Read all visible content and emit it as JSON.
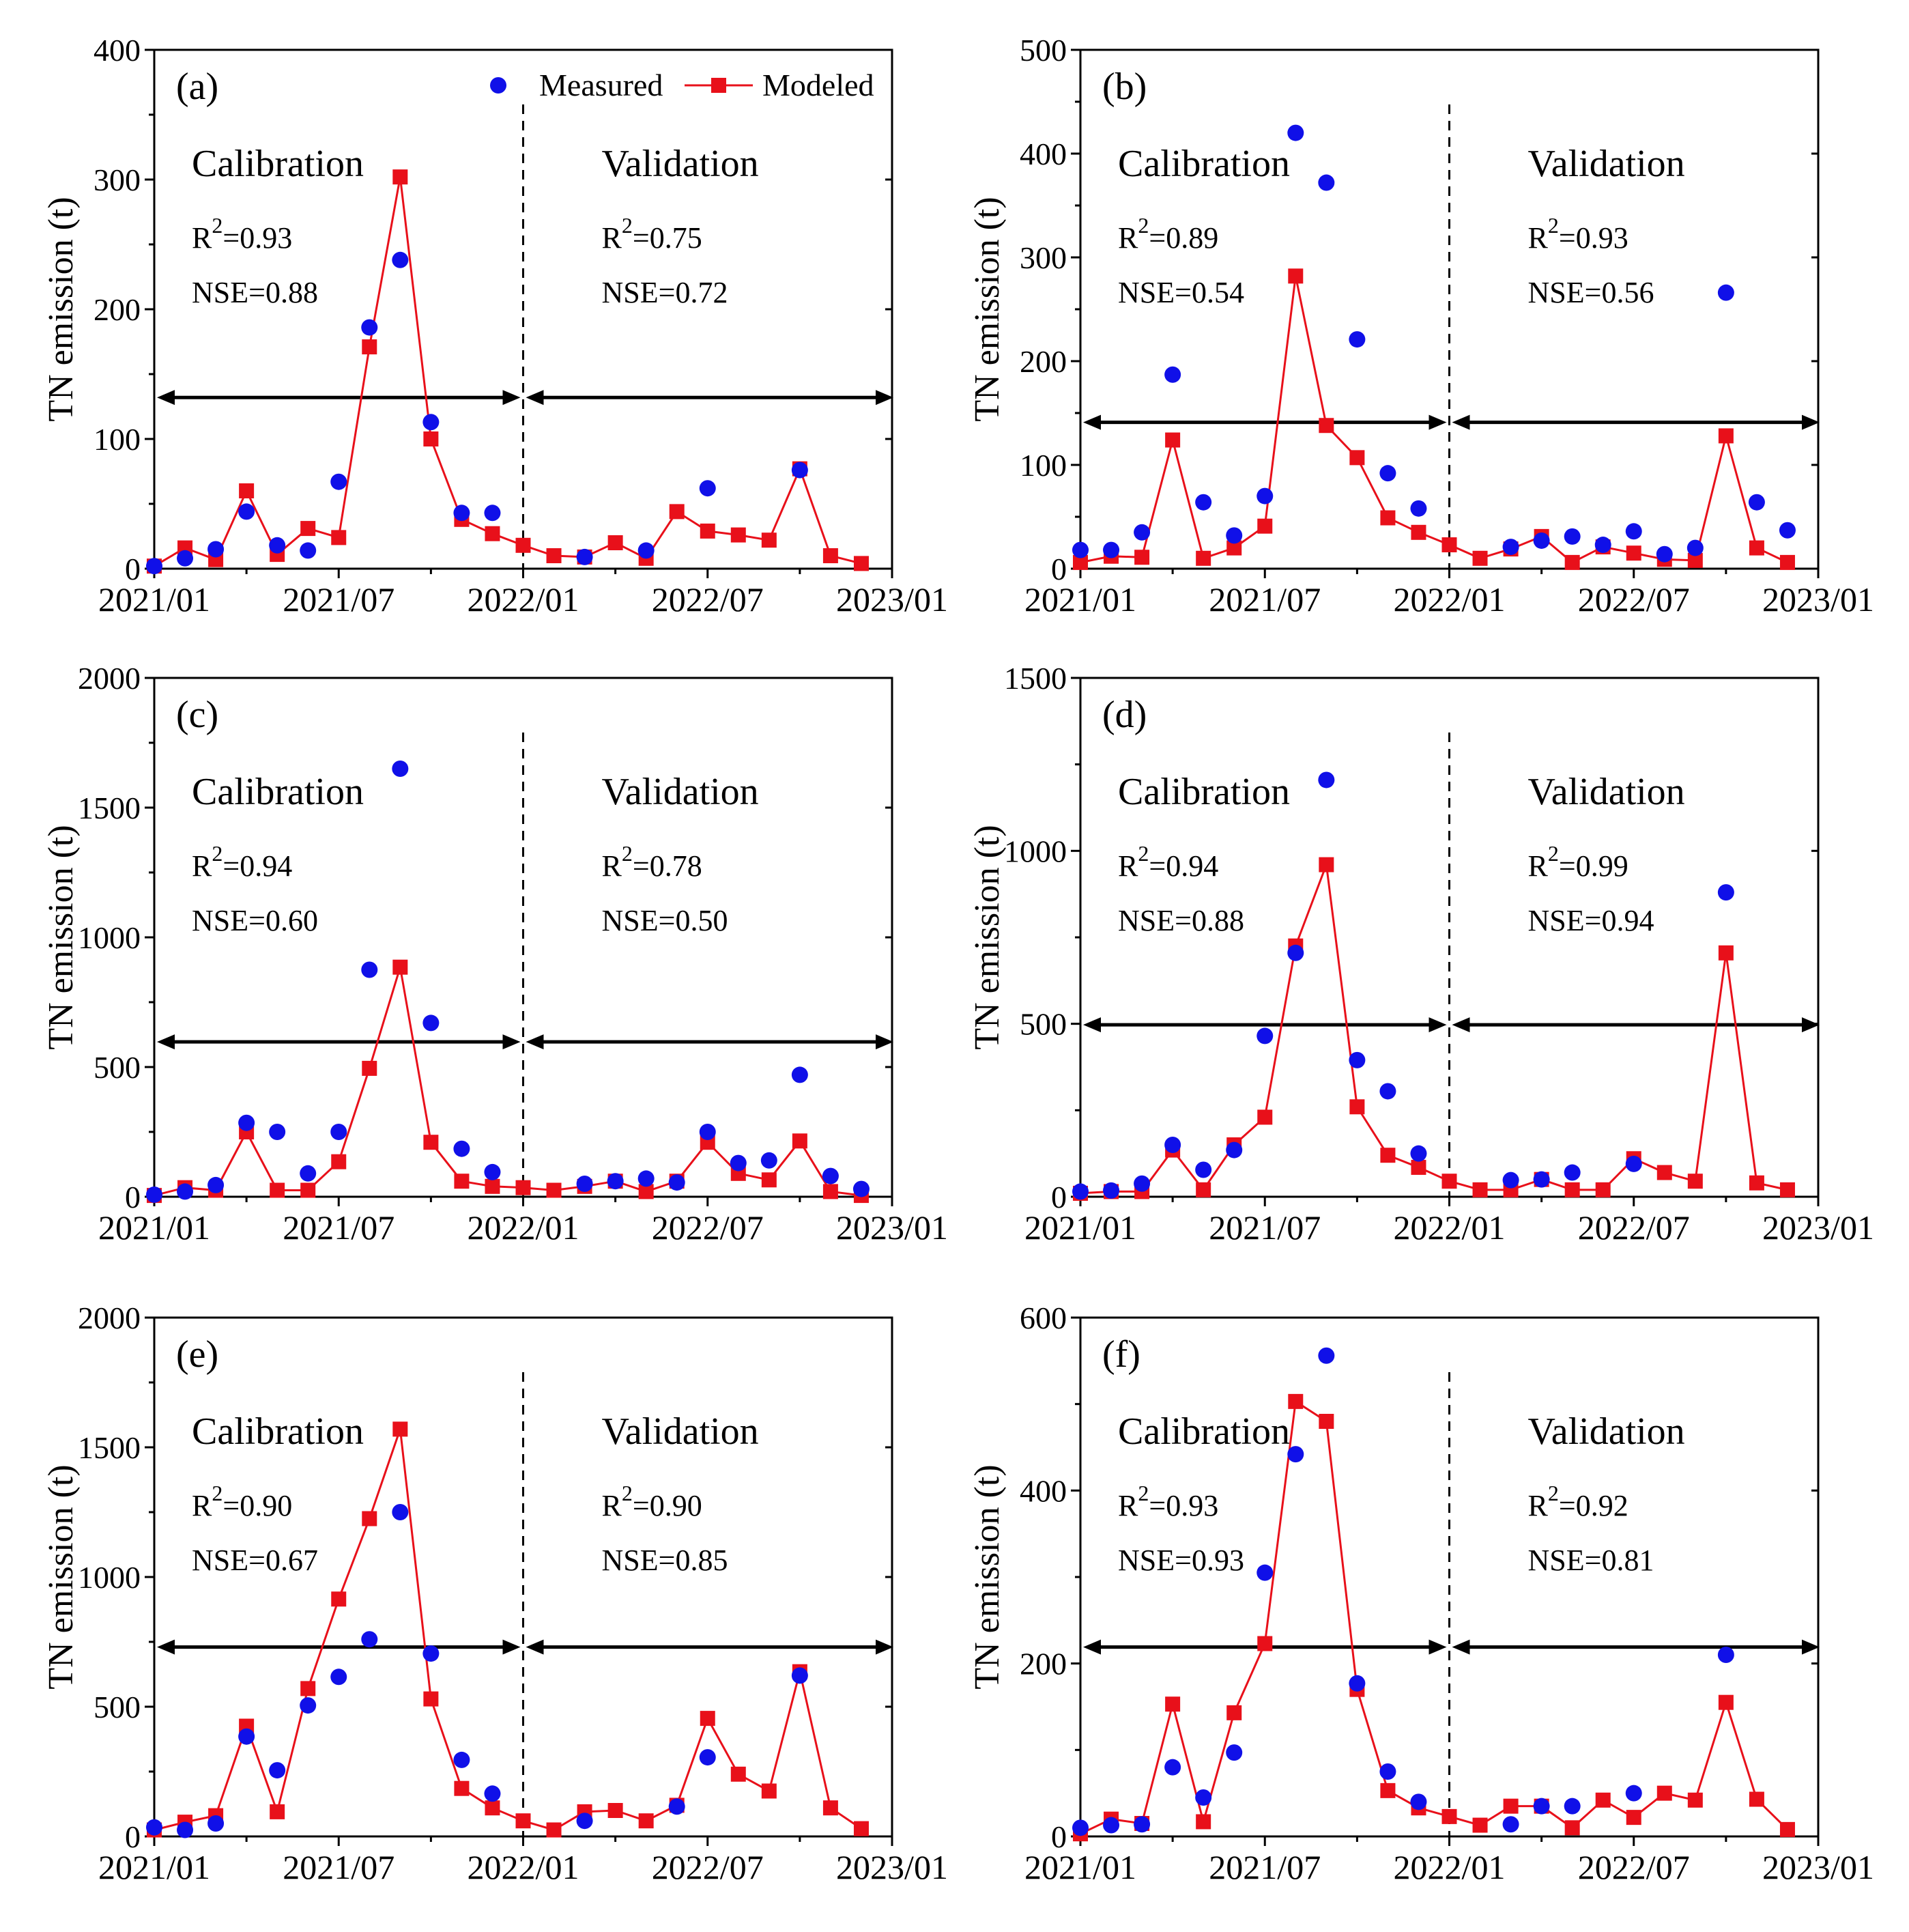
{
  "colors": {
    "measured": "#1010e8",
    "modeled": "#e8101a",
    "axis": "#000000"
  },
  "legend": {
    "measured": "Measured",
    "modeled": "Modeled"
  },
  "x_tick_labels": [
    "2021/01",
    "2021/07",
    "2022/01",
    "2022/07",
    "2023/01"
  ],
  "chart_data": [
    {
      "type": "line",
      "panel_label": "(a)",
      "ylabel": "TN emission (t)",
      "ylim": [
        0,
        400
      ],
      "yticks": [
        0,
        100,
        200,
        300,
        400
      ],
      "arrow_y": 132,
      "calibration": {
        "label": "Calibration",
        "r2": "0.93",
        "nse": "NSE=0.88"
      },
      "validation": {
        "label": "Validation",
        "r2": "0.75",
        "nse": "NSE=0.72"
      },
      "measured": [
        [
          0,
          2
        ],
        [
          1,
          8
        ],
        [
          2,
          15
        ],
        [
          3,
          44
        ],
        [
          4,
          18
        ],
        [
          5,
          14
        ],
        [
          6,
          67
        ],
        [
          7,
          186
        ],
        [
          8,
          238
        ],
        [
          9,
          113
        ],
        [
          10,
          43
        ],
        [
          11,
          43
        ],
        [
          14,
          9
        ],
        [
          16,
          14
        ],
        [
          18,
          62
        ],
        [
          21,
          76
        ]
      ],
      "modeled": [
        [
          0,
          2
        ],
        [
          1,
          16
        ],
        [
          2,
          7
        ],
        [
          3,
          60
        ],
        [
          4,
          11
        ],
        [
          5,
          31
        ],
        [
          6,
          24
        ],
        [
          7,
          171
        ],
        [
          8,
          302
        ],
        [
          9,
          100
        ],
        [
          10,
          38
        ],
        [
          11,
          27
        ],
        [
          12,
          18
        ],
        [
          13,
          10
        ],
        [
          14,
          9
        ],
        [
          15,
          20
        ],
        [
          16,
          8
        ],
        [
          17,
          44
        ],
        [
          18,
          29
        ],
        [
          19,
          26
        ],
        [
          20,
          22
        ],
        [
          21,
          77
        ],
        [
          22,
          10
        ],
        [
          23,
          4
        ]
      ]
    },
    {
      "type": "line",
      "panel_label": "(b)",
      "ylabel": "TN emission (t)",
      "ylim": [
        0,
        500
      ],
      "yticks": [
        0,
        100,
        200,
        300,
        400,
        500
      ],
      "arrow_y": 141,
      "calibration": {
        "label": "Calibration",
        "r2": "0.89",
        "nse": "NSE=0.54"
      },
      "validation": {
        "label": "Validation",
        "r2": "0.93",
        "nse": "NSE=0.56"
      },
      "measured": [
        [
          0,
          18
        ],
        [
          1,
          18
        ],
        [
          2,
          35
        ],
        [
          3,
          187
        ],
        [
          4,
          64
        ],
        [
          5,
          32
        ],
        [
          6,
          70
        ],
        [
          7,
          420
        ],
        [
          8,
          372
        ],
        [
          9,
          221
        ],
        [
          10,
          92
        ],
        [
          11,
          58
        ],
        [
          14,
          21
        ],
        [
          15,
          27
        ],
        [
          16,
          31
        ],
        [
          17,
          23
        ],
        [
          18,
          36
        ],
        [
          19,
          14
        ],
        [
          20,
          20
        ],
        [
          21,
          266
        ],
        [
          22,
          64
        ],
        [
          23,
          37
        ]
      ],
      "modeled": [
        [
          0,
          6
        ],
        [
          1,
          12
        ],
        [
          2,
          11
        ],
        [
          3,
          124
        ],
        [
          4,
          10
        ],
        [
          5,
          20
        ],
        [
          6,
          41
        ],
        [
          7,
          282
        ],
        [
          8,
          138
        ],
        [
          9,
          107
        ],
        [
          10,
          49
        ],
        [
          11,
          35
        ],
        [
          12,
          23
        ],
        [
          13,
          10
        ],
        [
          14,
          19
        ],
        [
          15,
          31
        ],
        [
          16,
          6
        ],
        [
          17,
          21
        ],
        [
          18,
          15
        ],
        [
          19,
          9
        ],
        [
          20,
          8
        ],
        [
          21,
          128
        ],
        [
          22,
          20
        ],
        [
          23,
          6
        ]
      ]
    },
    {
      "type": "line",
      "panel_label": "(c)",
      "ylabel": "TN emission (t)",
      "ylim": [
        0,
        2000
      ],
      "yticks": [
        0,
        500,
        1000,
        1500,
        2000
      ],
      "arrow_y": 597,
      "calibration": {
        "label": "Calibration",
        "r2": "0.94",
        "nse": "NSE=0.60"
      },
      "validation": {
        "label": "Validation",
        "r2": "0.78",
        "nse": "NSE=0.50"
      },
      "measured": [
        [
          0,
          8
        ],
        [
          1,
          20
        ],
        [
          2,
          45
        ],
        [
          3,
          285
        ],
        [
          4,
          250
        ],
        [
          5,
          90
        ],
        [
          6,
          250
        ],
        [
          7,
          875
        ],
        [
          8,
          1650
        ],
        [
          9,
          670
        ],
        [
          10,
          185
        ],
        [
          11,
          95
        ],
        [
          14,
          50
        ],
        [
          15,
          60
        ],
        [
          16,
          70
        ],
        [
          17,
          55
        ],
        [
          18,
          250
        ],
        [
          19,
          130
        ],
        [
          20,
          140
        ],
        [
          21,
          470
        ],
        [
          22,
          80
        ],
        [
          23,
          30
        ]
      ],
      "modeled": [
        [
          0,
          5
        ],
        [
          1,
          35
        ],
        [
          2,
          25
        ],
        [
          3,
          250
        ],
        [
          4,
          25
        ],
        [
          5,
          25
        ],
        [
          6,
          135
        ],
        [
          7,
          495
        ],
        [
          8,
          885
        ],
        [
          9,
          210
        ],
        [
          10,
          60
        ],
        [
          11,
          40
        ],
        [
          12,
          35
        ],
        [
          13,
          25
        ],
        [
          14,
          40
        ],
        [
          15,
          60
        ],
        [
          16,
          20
        ],
        [
          17,
          60
        ],
        [
          18,
          210
        ],
        [
          19,
          90
        ],
        [
          20,
          65
        ],
        [
          21,
          215
        ],
        [
          22,
          20
        ],
        [
          23,
          5
        ]
      ]
    },
    {
      "type": "line",
      "panel_label": "(d)",
      "ylabel": "TN emission (t)",
      "ylim": [
        0,
        1500
      ],
      "yticks": [
        0,
        500,
        1000,
        1500
      ],
      "arrow_y": 497,
      "calibration": {
        "label": "Calibration",
        "r2": "0.94",
        "nse": "NSE=0.88"
      },
      "validation": {
        "label": "Validation",
        "r2": "0.99",
        "nse": "NSE=0.94"
      },
      "measured": [
        [
          0,
          15
        ],
        [
          1,
          18
        ],
        [
          2,
          38
        ],
        [
          3,
          150
        ],
        [
          4,
          78
        ],
        [
          5,
          135
        ],
        [
          6,
          465
        ],
        [
          7,
          705
        ],
        [
          8,
          1205
        ],
        [
          9,
          395
        ],
        [
          10,
          305
        ],
        [
          11,
          125
        ],
        [
          14,
          48
        ],
        [
          15,
          50
        ],
        [
          16,
          70
        ],
        [
          18,
          95
        ],
        [
          21,
          880
        ]
      ],
      "modeled": [
        [
          0,
          10
        ],
        [
          1,
          15
        ],
        [
          2,
          15
        ],
        [
          3,
          135
        ],
        [
          4,
          20
        ],
        [
          5,
          150
        ],
        [
          6,
          230
        ],
        [
          7,
          725
        ],
        [
          8,
          960
        ],
        [
          9,
          260
        ],
        [
          10,
          120
        ],
        [
          11,
          85
        ],
        [
          12,
          45
        ],
        [
          13,
          20
        ],
        [
          14,
          20
        ],
        [
          15,
          50
        ],
        [
          16,
          20
        ],
        [
          17,
          20
        ],
        [
          18,
          110
        ],
        [
          19,
          70
        ],
        [
          20,
          45
        ],
        [
          21,
          705
        ],
        [
          22,
          40
        ],
        [
          23,
          20
        ]
      ]
    },
    {
      "type": "line",
      "panel_label": "(e)",
      "ylabel": "TN emission (t)",
      "ylim": [
        0,
        2000
      ],
      "yticks": [
        0,
        500,
        1000,
        1500,
        2000
      ],
      "arrow_y": 730,
      "calibration": {
        "label": "Calibration",
        "r2": "0.90",
        "nse": "NSE=0.67"
      },
      "validation": {
        "label": "Validation",
        "r2": "0.90",
        "nse": "NSE=0.85"
      },
      "measured": [
        [
          0,
          35
        ],
        [
          1,
          25
        ],
        [
          2,
          50
        ],
        [
          3,
          385
        ],
        [
          4,
          255
        ],
        [
          5,
          505
        ],
        [
          6,
          615
        ],
        [
          7,
          760
        ],
        [
          8,
          1250
        ],
        [
          9,
          705
        ],
        [
          10,
          295
        ],
        [
          11,
          165
        ],
        [
          14,
          60
        ],
        [
          17,
          115
        ],
        [
          18,
          305
        ],
        [
          21,
          620
        ]
      ],
      "modeled": [
        [
          0,
          25
        ],
        [
          1,
          55
        ],
        [
          2,
          80
        ],
        [
          3,
          425
        ],
        [
          4,
          95
        ],
        [
          5,
          570
        ],
        [
          6,
          915
        ],
        [
          7,
          1225
        ],
        [
          8,
          1570
        ],
        [
          9,
          530
        ],
        [
          10,
          185
        ],
        [
          11,
          110
        ],
        [
          12,
          60
        ],
        [
          13,
          25
        ],
        [
          14,
          95
        ],
        [
          15,
          100
        ],
        [
          16,
          60
        ],
        [
          17,
          120
        ],
        [
          18,
          455
        ],
        [
          19,
          240
        ],
        [
          20,
          175
        ],
        [
          21,
          635
        ],
        [
          22,
          110
        ],
        [
          23,
          30
        ]
      ]
    },
    {
      "type": "line",
      "panel_label": "(f)",
      "ylabel": "TN emission (t)",
      "ylim": [
        0,
        600
      ],
      "yticks": [
        0,
        200,
        400,
        600
      ],
      "arrow_y": 219,
      "calibration": {
        "label": "Calibration",
        "r2": "0.93",
        "nse": "NSE=0.93"
      },
      "validation": {
        "label": "Validation",
        "r2": "0.92",
        "nse": "NSE=0.81"
      },
      "measured": [
        [
          0,
          10
        ],
        [
          1,
          13
        ],
        [
          2,
          14
        ],
        [
          3,
          80
        ],
        [
          4,
          45
        ],
        [
          5,
          97
        ],
        [
          6,
          305
        ],
        [
          7,
          442
        ],
        [
          8,
          556
        ],
        [
          9,
          177
        ],
        [
          10,
          75
        ],
        [
          11,
          40
        ],
        [
          14,
          14
        ],
        [
          15,
          35
        ],
        [
          16,
          35
        ],
        [
          18,
          50
        ],
        [
          21,
          210
        ]
      ],
      "modeled": [
        [
          0,
          3
        ],
        [
          1,
          20
        ],
        [
          2,
          15
        ],
        [
          3,
          153
        ],
        [
          4,
          17
        ],
        [
          5,
          143
        ],
        [
          6,
          223
        ],
        [
          7,
          503
        ],
        [
          8,
          480
        ],
        [
          9,
          170
        ],
        [
          10,
          53
        ],
        [
          11,
          33
        ],
        [
          12,
          23
        ],
        [
          13,
          13
        ],
        [
          14,
          35
        ],
        [
          15,
          35
        ],
        [
          16,
          10
        ],
        [
          17,
          42
        ],
        [
          18,
          22
        ],
        [
          19,
          50
        ],
        [
          20,
          42
        ],
        [
          21,
          155
        ],
        [
          22,
          43
        ],
        [
          23,
          8
        ]
      ]
    }
  ]
}
